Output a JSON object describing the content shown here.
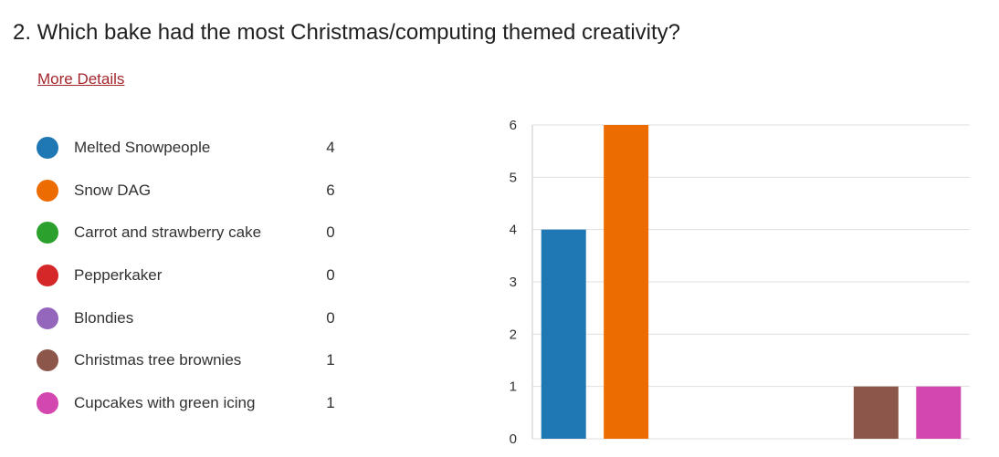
{
  "question": {
    "title": "2.  Which bake had the most Christmas/computing themed creativity?",
    "more_details_label": "More Details"
  },
  "chart_data": {
    "type": "bar",
    "categories": [
      "Melted Snowpeople",
      "Snow DAG",
      "Carrot and strawberry cake",
      "Pepperkaker",
      "Blondies",
      "Christmas tree brownies",
      "Cupcakes with green icing"
    ],
    "values": [
      4,
      6,
      0,
      0,
      0,
      1,
      1
    ],
    "colors": [
      "#1f77b4",
      "#ed6c02",
      "#2ca02c",
      "#d62728",
      "#9467bd",
      "#8c564b",
      "#d348b0"
    ],
    "ylim": [
      0,
      6
    ],
    "yticks": [
      "0",
      "1",
      "2",
      "3",
      "4",
      "5",
      "6"
    ],
    "grid": true,
    "legend_placement": "left",
    "title": "",
    "xlabel": "",
    "ylabel": ""
  }
}
